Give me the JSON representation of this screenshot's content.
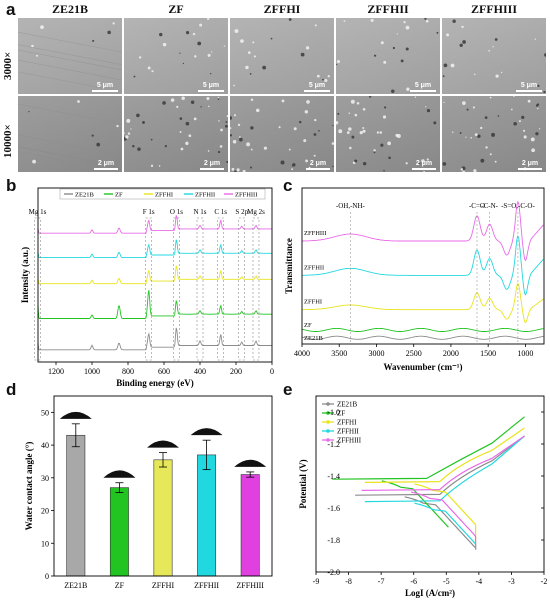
{
  "panel_labels": {
    "a": "a",
    "b": "b",
    "c": "c",
    "d": "d",
    "e": "e"
  },
  "sem": {
    "columns": [
      "ZE21B",
      "ZF",
      "ZFFHI",
      "ZFFHII",
      "ZFFHIII"
    ],
    "rows": [
      "3000×",
      "10000×"
    ],
    "scale_bars": [
      "5 μm",
      "2 μm"
    ]
  },
  "chart_data": [
    {
      "type": "line",
      "panel": "b",
      "xlabel": "Binding energy (eV)",
      "ylabel": "Intensity (a.u.)",
      "xlim": [
        1300,
        0
      ],
      "xticks": [
        1200,
        1000,
        800,
        600,
        400,
        200,
        0
      ],
      "legend": "top",
      "series": [
        {
          "name": "ZE21B",
          "color": "#8c8c8c",
          "offset": 0.07
        },
        {
          "name": "ZF",
          "color": "#22c422",
          "offset": 0.25
        },
        {
          "name": "ZFFHI",
          "color": "#e8e41c",
          "offset": 0.45
        },
        {
          "name": "ZFFHII",
          "color": "#22d8e0",
          "offset": 0.6
        },
        {
          "name": "ZFFHIII",
          "color": "#e86ae8",
          "offset": 0.74
        }
      ],
      "peaks": [
        {
          "label": "Mg 1s",
          "x": 1303
        },
        {
          "label": "F 1s",
          "x": 685
        },
        {
          "label": "O 1s",
          "x": 531
        },
        {
          "label": "N 1s",
          "x": 400
        },
        {
          "label": "C 1s",
          "x": 285
        },
        {
          "label": "S 2p",
          "x": 168
        },
        {
          "label": "Mg 2s",
          "x": 89
        }
      ]
    },
    {
      "type": "line",
      "panel": "c",
      "xlabel": "Wavenumber (cm⁻¹)",
      "ylabel": "Transmittance",
      "xlim": [
        4000,
        750
      ],
      "xticks": [
        4000,
        3500,
        3000,
        2500,
        2000,
        1500,
        1000
      ],
      "series": [
        {
          "name": "ZE21B",
          "color": "#8c8c8c"
        },
        {
          "name": "ZF",
          "color": "#22c422"
        },
        {
          "name": "ZFFHI",
          "color": "#e8e41c"
        },
        {
          "name": "ZFFHII",
          "color": "#22d8e0"
        },
        {
          "name": "ZFFHIII",
          "color": "#e86ae8"
        }
      ],
      "annotations": [
        {
          "label": "-OH,-NH-",
          "x": 3350
        },
        {
          "label": "-C=O",
          "x": 1650
        },
        {
          "label": "-C-N-",
          "x": 1480
        },
        {
          "label": "-S=O,-C-O-",
          "x": 1100
        }
      ]
    },
    {
      "type": "bar",
      "panel": "d",
      "categories": [
        "ZE21B",
        "ZF",
        "ZFFHI",
        "ZFFHII",
        "ZFFHIII"
      ],
      "values": [
        43,
        27,
        35.5,
        37,
        31
      ],
      "errors": [
        3.5,
        1.5,
        2.2,
        4.5,
        0.8
      ],
      "colors": [
        "#a8a8a8",
        "#22c422",
        "#e6e85a",
        "#22d8e0",
        "#e040e0"
      ],
      "ylabel": "Water contact angle (°)",
      "ylim": [
        0,
        55
      ],
      "yticks": [
        0,
        10,
        20,
        30,
        40,
        50
      ]
    },
    {
      "type": "line",
      "panel": "e",
      "xlabel": "LogI (A/cm²)",
      "ylabel": "Potential (V)",
      "xlim": [
        -9,
        -2
      ],
      "ylim": [
        -2.0,
        -0.9
      ],
      "xticks": [
        -9,
        -8,
        -7,
        -6,
        -5,
        -4,
        -3,
        -2
      ],
      "yticks": [
        -1.0,
        -1.2,
        -1.4,
        -1.6,
        -1.8,
        -2.0
      ],
      "legend": "top-left",
      "series": [
        {
          "name": "ZE21B",
          "color": "#8c8c8c",
          "ecorr": -1.52,
          "icorr": -5.6
        },
        {
          "name": "ZF",
          "color": "#22c422",
          "ecorr": -1.42,
          "icorr": -6.3
        },
        {
          "name": "ZFFHI",
          "color": "#e8e41c",
          "ecorr": -1.44,
          "icorr": -5.3
        },
        {
          "name": "ZFFHII",
          "color": "#22d8e0",
          "ecorr": -1.56,
          "icorr": -5.3
        },
        {
          "name": "ZFFHIII",
          "color": "#e86ae8",
          "ecorr": -1.49,
          "icorr": -5.4
        }
      ]
    }
  ]
}
